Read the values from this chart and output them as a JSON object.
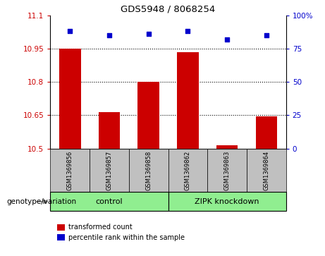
{
  "title": "GDS5948 / 8068254",
  "samples": [
    "GSM1369856",
    "GSM1369857",
    "GSM1369858",
    "GSM1369862",
    "GSM1369863",
    "GSM1369864"
  ],
  "bar_values": [
    10.95,
    10.665,
    10.8,
    10.935,
    10.515,
    10.645
  ],
  "bar_base": 10.5,
  "percentile_values": [
    88,
    85,
    86,
    88,
    82,
    85
  ],
  "ylim_left": [
    10.5,
    11.1
  ],
  "yticks_left": [
    10.5,
    10.65,
    10.8,
    10.95,
    11.1
  ],
  "ylim_right": [
    0,
    100
  ],
  "yticks_right": [
    0,
    25,
    50,
    75,
    100
  ],
  "ytick_right_labels": [
    "0",
    "25",
    "50",
    "75",
    "100%"
  ],
  "bar_color": "#cc0000",
  "dot_color": "#0000cc",
  "group_bg_color": "#c0c0c0",
  "group_label_color": "#90ee90",
  "genotype_label": "genotype/variation",
  "legend_bar_label": "transformed count",
  "legend_dot_label": "percentile rank within the sample",
  "axis_left_color": "#cc0000",
  "axis_right_color": "#0000cc",
  "grid_color": "#000000",
  "control_label": "control",
  "zipk_label": "ZIPK knockdown"
}
